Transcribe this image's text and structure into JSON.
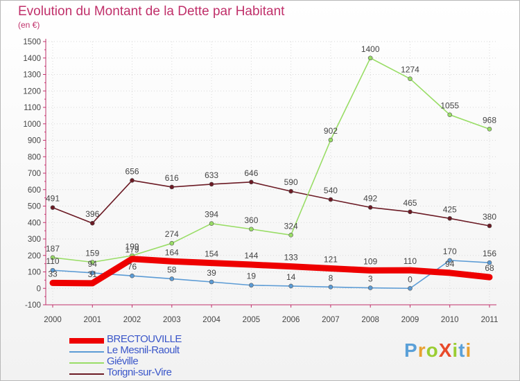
{
  "title": "Evolution du Montant de la Dette par Habitant",
  "unit_label": "(en €)",
  "logo": {
    "text": "ProXiti",
    "letter_colors": [
      "#5aa0d8",
      "#e8a030",
      "#9acd32",
      "#e84a2a",
      "#9acd32",
      "#5aa0d8",
      "#e8a030"
    ]
  },
  "chart_data": {
    "type": "line",
    "x": [
      "2000",
      "2001",
      "2002",
      "2003",
      "2004",
      "2005",
      "2006",
      "2007",
      "2008",
      "2009",
      "2010",
      "2011"
    ],
    "ylim": [
      -100,
      1500
    ],
    "yticks": [
      "-100",
      "0",
      "100",
      "200",
      "300",
      "400",
      "500",
      "600",
      "700",
      "800",
      "900",
      "1000",
      "1100",
      "1200",
      "1300",
      "1400",
      "1500"
    ],
    "grid": true,
    "legend_position": "bottom-left",
    "series": [
      {
        "name": "BRECTOUVILLE",
        "color": "#ee0000",
        "values": [
          33,
          31,
          179,
          164,
          154,
          144,
          133,
          121,
          109,
          110,
          94,
          68
        ],
        "labels": [
          "33",
          "31",
          "179",
          "164",
          "154",
          "144",
          "133",
          "121",
          "109",
          "110",
          "94",
          "68"
        ]
      },
      {
        "name": "Le Mesnil-Raoult",
        "color": "#5b9bd5",
        "values": [
          110,
          94,
          76,
          58,
          39,
          19,
          14,
          8,
          3,
          0,
          170,
          156
        ],
        "labels": [
          "110",
          "94",
          "76",
          "58",
          "39",
          "19",
          "14",
          "8",
          "3",
          "0",
          "170",
          "156"
        ]
      },
      {
        "name": "Giéville",
        "color": "#99dd66",
        "values": [
          187,
          159,
          199,
          274,
          394,
          360,
          324,
          902,
          1400,
          1274,
          1055,
          968
        ],
        "labels": [
          "187",
          "159",
          "199",
          "274",
          "394",
          "360",
          "324",
          "902",
          "1400",
          "1274",
          "1055",
          "968"
        ]
      },
      {
        "name": "Torigni-sur-Vire",
        "color": "#6b1a24",
        "values": [
          491,
          396,
          656,
          616,
          633,
          646,
          590,
          540,
          492,
          465,
          425,
          380
        ],
        "labels": [
          "491",
          "396",
          "656",
          "616",
          "633",
          "646",
          "590",
          "540",
          "492",
          "465",
          "425",
          "380"
        ]
      }
    ]
  }
}
